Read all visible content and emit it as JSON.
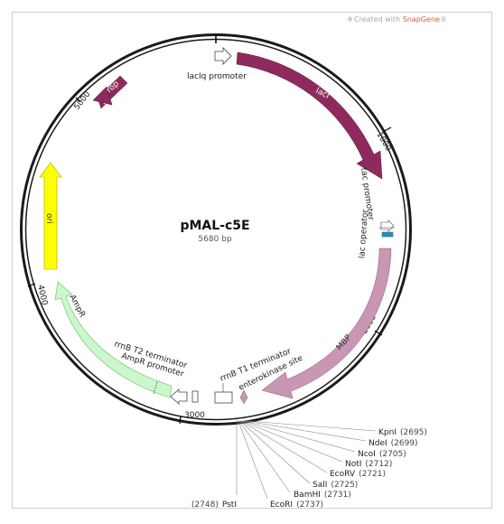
{
  "header": {
    "prefix": "Created with ",
    "brand": "SnapGene",
    "suffix": "®",
    "brand_color": "#e35a3a"
  },
  "plasmid": {
    "name": "pMAL-c5E",
    "size_label": "5680 bp"
  },
  "ticks": [
    "1000",
    "2000",
    "3000",
    "4000",
    "5000"
  ],
  "features": {
    "laciq_promoter": "lacIq promoter",
    "laci": "lacI",
    "tac_promoter": "tac promoter",
    "lac_operator": "lac operator",
    "mbp": "MBP",
    "rrnb_t1": "rrnB T1 terminator",
    "enterokinase": "enterokinase site",
    "rrnb_t2": "rrnB T2 terminator",
    "ampr_promoter": "AmpR promoter",
    "ampr": "AmpR",
    "ori": "ori",
    "rop": "rop"
  },
  "sites": [
    {
      "name": "KpnI",
      "pos": "(2695)"
    },
    {
      "name": "NdeI",
      "pos": "(2699)"
    },
    {
      "name": "NcoI",
      "pos": "(2705)"
    },
    {
      "name": "NotI",
      "pos": "(2712)"
    },
    {
      "name": "EcoRV",
      "pos": "(2721)"
    },
    {
      "name": "SalI",
      "pos": "(2725)"
    },
    {
      "name": "BamHI",
      "pos": "(2731)"
    },
    {
      "name": "EcoRI",
      "pos": "(2737)"
    },
    {
      "name": "PstI",
      "pos": "(2748)"
    }
  ],
  "colors": {
    "laci": "#8e2a5e",
    "mbp": "#c996b4",
    "ampr": "#ccf7cc",
    "ori": "#ffff00",
    "rop": "#8e2a5e",
    "operator": "#2a8fb0"
  }
}
